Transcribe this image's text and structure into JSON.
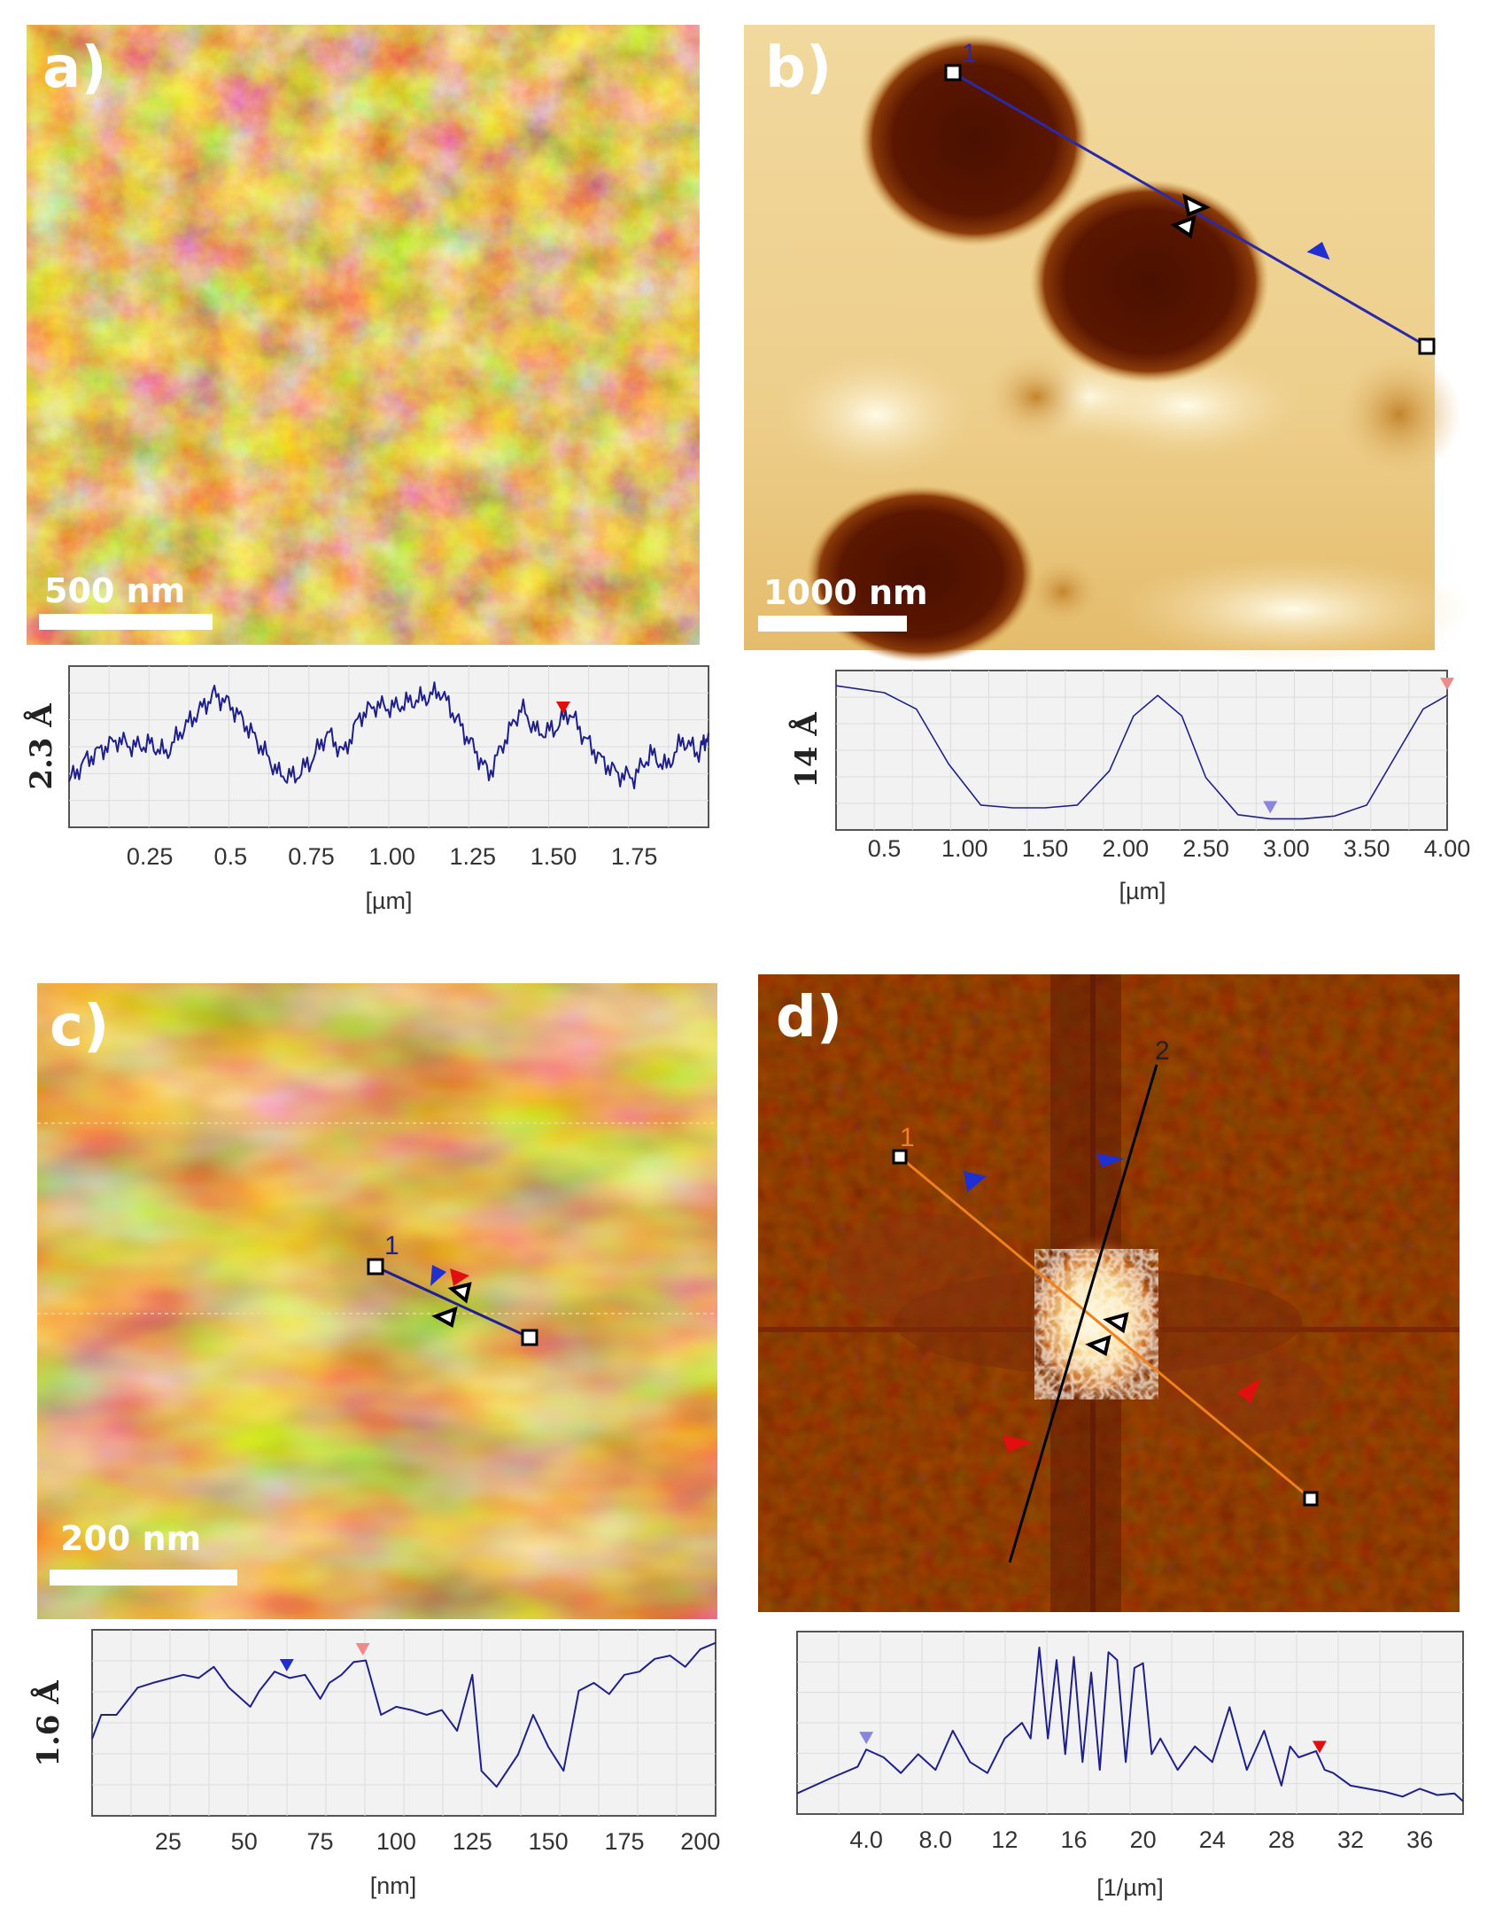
{
  "panels": {
    "a": {
      "label": "a)",
      "scalebar": "500 nm"
    },
    "b": {
      "label": "b)",
      "scalebar": "1000 nm",
      "line_label": "1"
    },
    "c": {
      "label": "c)",
      "scalebar": "200 nm",
      "line_label": "1"
    },
    "d": {
      "label": "d)",
      "line1_label": "1",
      "line2_label": "2"
    }
  },
  "colors": {
    "profile_line": "#1f1f8f",
    "plot_bg": "#f2f2f2",
    "grid": "#dcdcdc",
    "afm_dark": "#4a1500",
    "afm_mid": "#c0861e",
    "afm_light": "#fff4c8",
    "fft_bg": "#4a0f00",
    "marker_red": "#e01010",
    "marker_blue": "#1f2fd0",
    "marker_pink": "#f08a8a",
    "marker_lavender": "#8a86e0"
  },
  "chart_data": [
    {
      "panel": "a",
      "type": "line",
      "xlabel": "[µm]",
      "ylabel": "2.3 Å",
      "xlim": [
        0,
        1.98
      ],
      "ylim": [
        0,
        1
      ],
      "xticks": [
        "0.25",
        "0.5",
        "0.75",
        "1.00",
        "1.25",
        "1.50",
        "1.75"
      ],
      "xtick_values": [
        0.25,
        0.5,
        0.75,
        1.0,
        1.25,
        1.5,
        1.75
      ],
      "markers": [
        {
          "x": 1.53,
          "color": "red"
        }
      ],
      "x": [
        0.0,
        0.05,
        0.1,
        0.15,
        0.2,
        0.25,
        0.3,
        0.35,
        0.4,
        0.45,
        0.5,
        0.55,
        0.6,
        0.65,
        0.7,
        0.75,
        0.8,
        0.85,
        0.9,
        0.95,
        1.0,
        1.05,
        1.1,
        1.15,
        1.2,
        1.25,
        1.3,
        1.35,
        1.4,
        1.45,
        1.5,
        1.55,
        1.6,
        1.65,
        1.7,
        1.75,
        1.8,
        1.85,
        1.9,
        1.95,
        1.98
      ],
      "y": [
        0.25,
        0.4,
        0.48,
        0.55,
        0.5,
        0.52,
        0.45,
        0.62,
        0.75,
        0.88,
        0.8,
        0.65,
        0.48,
        0.3,
        0.28,
        0.4,
        0.6,
        0.45,
        0.72,
        0.8,
        0.78,
        0.82,
        0.85,
        0.9,
        0.7,
        0.5,
        0.3,
        0.55,
        0.78,
        0.6,
        0.62,
        0.75,
        0.55,
        0.4,
        0.3,
        0.28,
        0.45,
        0.35,
        0.55,
        0.45,
        0.6
      ]
    },
    {
      "panel": "b",
      "type": "line",
      "xlabel": "[µm]",
      "ylabel": "14 Å",
      "xlim": [
        0.2,
        4.0
      ],
      "ylim": [
        0,
        1
      ],
      "xticks": [
        "0.5",
        "1.00",
        "1.50",
        "2.00",
        "2.50",
        "3.00",
        "3.50",
        "4.00"
      ],
      "xtick_values": [
        0.5,
        1.0,
        1.5,
        2.0,
        2.5,
        3.0,
        3.5,
        4.0
      ],
      "markers": [
        {
          "x": 2.9,
          "color": "lavender"
        },
        {
          "x": 4.0,
          "color": "pink"
        }
      ],
      "x": [
        0.2,
        0.5,
        0.7,
        0.9,
        1.1,
        1.3,
        1.5,
        1.7,
        1.9,
        2.05,
        2.2,
        2.35,
        2.5,
        2.7,
        2.9,
        3.1,
        3.3,
        3.5,
        3.7,
        3.85,
        4.0
      ],
      "y": [
        0.97,
        0.92,
        0.8,
        0.4,
        0.1,
        0.08,
        0.08,
        0.1,
        0.35,
        0.75,
        0.9,
        0.75,
        0.3,
        0.03,
        0.0,
        0.0,
        0.02,
        0.1,
        0.5,
        0.8,
        0.9
      ]
    },
    {
      "panel": "c",
      "type": "line",
      "xlabel": "[nm]",
      "ylabel": "1.6 Å",
      "xlim": [
        0,
        205
      ],
      "ylim": [
        0,
        1
      ],
      "xticks": [
        "25",
        "50",
        "75",
        "100",
        "125",
        "150",
        "175",
        "200"
      ],
      "xtick_values": [
        25,
        50,
        75,
        100,
        125,
        150,
        175,
        200
      ],
      "markers": [
        {
          "x": 64,
          "color": "blue"
        },
        {
          "x": 89,
          "color": "pink"
        }
      ],
      "x": [
        0,
        3,
        8,
        15,
        20,
        30,
        35,
        40,
        45,
        52,
        55,
        60,
        65,
        70,
        75,
        78,
        82,
        86,
        90,
        95,
        100,
        105,
        110,
        115,
        120,
        125,
        128,
        133,
        140,
        145,
        150,
        155,
        160,
        165,
        170,
        175,
        180,
        185,
        190,
        195,
        200,
        205
      ],
      "y": [
        0.4,
        0.55,
        0.55,
        0.72,
        0.75,
        0.8,
        0.78,
        0.85,
        0.72,
        0.6,
        0.7,
        0.82,
        0.78,
        0.8,
        0.65,
        0.75,
        0.8,
        0.88,
        0.89,
        0.55,
        0.6,
        0.58,
        0.55,
        0.58,
        0.45,
        0.8,
        0.2,
        0.1,
        0.3,
        0.55,
        0.35,
        0.2,
        0.7,
        0.75,
        0.68,
        0.8,
        0.82,
        0.9,
        0.92,
        0.85,
        0.96,
        1.0
      ]
    },
    {
      "panel": "d",
      "type": "line",
      "xlabel": "[1/µm]",
      "ylabel": "",
      "xlim": [
        0,
        38.5
      ],
      "ylim": [
        0,
        1
      ],
      "xticks": [
        "4.0",
        "8.0",
        "12",
        "16",
        "20",
        "24",
        "28",
        "32",
        "36"
      ],
      "xtick_values": [
        4,
        8,
        12,
        16,
        20,
        24,
        28,
        32,
        36
      ],
      "markers": [
        {
          "x": 4.0,
          "color": "lavender"
        },
        {
          "x": 30.2,
          "color": "red"
        }
      ],
      "x": [
        0,
        2,
        3.5,
        4.0,
        5,
        6,
        7,
        8,
        9,
        10,
        11,
        12,
        13,
        13.5,
        14,
        14.5,
        15,
        15.5,
        16,
        16.5,
        17,
        17.5,
        18,
        18.5,
        19,
        19.5,
        20,
        20.5,
        21,
        22,
        23,
        24,
        25,
        26,
        27,
        28,
        28.5,
        29,
        30,
        30.5,
        31,
        32,
        34,
        35,
        36,
        37,
        38,
        38.5
      ],
      "y": [
        0.05,
        0.15,
        0.22,
        0.33,
        0.28,
        0.18,
        0.3,
        0.2,
        0.45,
        0.25,
        0.18,
        0.4,
        0.5,
        0.4,
        0.98,
        0.4,
        0.9,
        0.3,
        0.92,
        0.25,
        0.82,
        0.2,
        0.95,
        0.9,
        0.25,
        0.85,
        0.88,
        0.3,
        0.4,
        0.2,
        0.35,
        0.25,
        0.6,
        0.2,
        0.45,
        0.1,
        0.35,
        0.28,
        0.32,
        0.2,
        0.18,
        0.1,
        0.06,
        0.03,
        0.08,
        0.04,
        0.05,
        0.0
      ]
    }
  ]
}
